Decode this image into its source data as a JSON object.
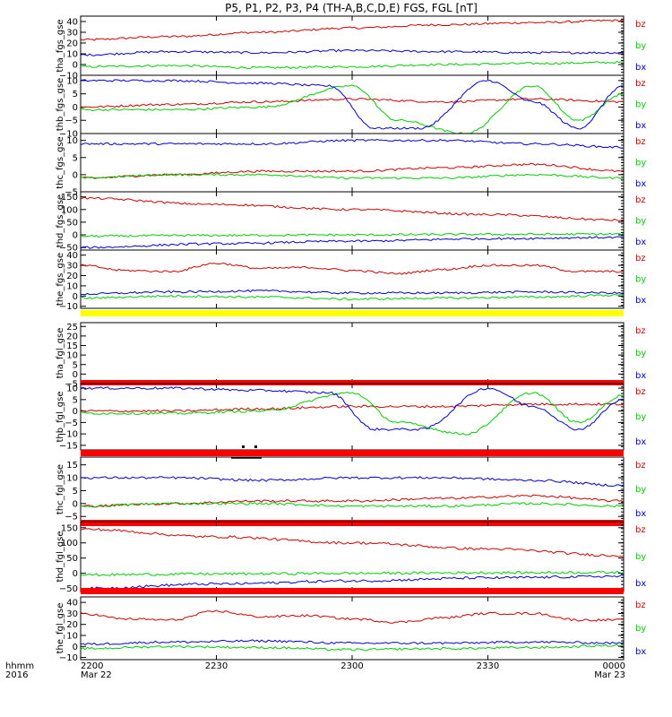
{
  "chart_data": {
    "type": "line",
    "title": "P5, P1, P2, P3, P4 (TH-A,B,C,D,E) FGS, FGL [nT]",
    "x_axis": {
      "row1_label": "hhmm",
      "row2_label": "2016",
      "ticks": [
        {
          "hhmm": "2200",
          "date": "Mar 22",
          "minutes": 0
        },
        {
          "hhmm": "2230",
          "date": "",
          "minutes": 30
        },
        {
          "hhmm": "2300",
          "date": "",
          "minutes": 60
        },
        {
          "hhmm": "2330",
          "date": "",
          "minutes": 90
        },
        {
          "hhmm": "0000",
          "date": "Mar 23",
          "minutes": 120
        }
      ],
      "range_minutes": [
        0,
        120
      ]
    },
    "colors": {
      "bz": "#cc0000",
      "by": "#00cc00",
      "bx": "#0000cc",
      "bar_yellow": "#ffff00",
      "bar_red": "#ff0000"
    },
    "legend": [
      "bz",
      "by",
      "bx"
    ],
    "panels": [
      {
        "label": "tha_fgs_gse",
        "ylim": [
          -10,
          45
        ],
        "ticks": [
          -10,
          0,
          10,
          20,
          30,
          40
        ],
        "tick_labels": [
          "−10",
          "0",
          "10",
          "20",
          "30",
          "40"
        ],
        "bar": null,
        "series": [
          {
            "name": "bz",
            "x": [
              0,
              20,
              40,
              60,
              80,
              100,
              120
            ],
            "y": [
              23,
              26,
              30,
              34,
              37,
              39,
              41
            ]
          },
          {
            "name": "by",
            "x": [
              0,
              20,
              40,
              60,
              80,
              100,
              120
            ],
            "y": [
              -2,
              -1,
              -3,
              -2,
              0,
              1,
              2
            ]
          },
          {
            "name": "bx",
            "x": [
              0,
              20,
              40,
              60,
              80,
              100,
              120
            ],
            "y": [
              9,
              12,
              11,
              13,
              12,
              11,
              11
            ]
          }
        ]
      },
      {
        "label": "thb_fgs_gse",
        "ylim": [
          -10,
          12
        ],
        "ticks": [
          -10,
          -5,
          0,
          5,
          10
        ],
        "tick_labels": [
          "−10",
          "−5",
          "0",
          "5",
          "10"
        ],
        "bar": null,
        "series": [
          {
            "name": "bz",
            "x": [
              0,
              20,
              40,
              60,
              80,
              100,
              120
            ],
            "y": [
              0,
              1,
              2,
              3,
              2,
              3,
              2
            ]
          },
          {
            "name": "by",
            "x": [
              0,
              20,
              40,
              60,
              70,
              85,
              100,
              110,
              120
            ],
            "y": [
              -1,
              -1,
              0,
              8,
              -5,
              -10,
              8,
              -5,
              5
            ]
          },
          {
            "name": "bx",
            "x": [
              0,
              20,
              40,
              55,
              65,
              75,
              90,
              100,
              110,
              120
            ],
            "y": [
              10,
              10,
              9,
              8,
              -8,
              -8,
              10,
              2,
              -8,
              8
            ]
          }
        ]
      },
      {
        "label": "thc_fgs_gse",
        "ylim": [
          -5,
          12
        ],
        "ticks": [
          -5,
          0,
          5,
          10
        ],
        "tick_labels": [
          "−5",
          "0",
          "5",
          "10"
        ],
        "bar": null,
        "series": [
          {
            "name": "bz",
            "x": [
              0,
              20,
              40,
              60,
              80,
              100,
              120
            ],
            "y": [
              -1,
              0,
              1,
              1,
              2,
              3,
              1
            ]
          },
          {
            "name": "by",
            "x": [
              0,
              20,
              40,
              60,
              80,
              100,
              120
            ],
            "y": [
              -1,
              0,
              0,
              -1,
              -1,
              0,
              -1
            ]
          },
          {
            "name": "bx",
            "x": [
              0,
              20,
              40,
              60,
              80,
              100,
              120
            ],
            "y": [
              9,
              9,
              9,
              10,
              10,
              9,
              8
            ]
          }
        ]
      },
      {
        "label": "thd_fgs_gse",
        "ylim": [
          -60,
          170
        ],
        "ticks": [
          -50,
          0,
          50,
          100,
          150
        ],
        "tick_labels": [
          "−50",
          "0",
          "50",
          "100",
          "150"
        ],
        "bar": null,
        "series": [
          {
            "name": "bz",
            "x": [
              0,
              30,
              60,
              90,
              120
            ],
            "y": [
              145,
              120,
              100,
              80,
              58
            ]
          },
          {
            "name": "by",
            "x": [
              0,
              30,
              60,
              90,
              120
            ],
            "y": [
              -5,
              -2,
              0,
              2,
              3
            ]
          },
          {
            "name": "bx",
            "x": [
              0,
              30,
              60,
              90,
              120
            ],
            "y": [
              -50,
              -35,
              -25,
              -15,
              -10
            ]
          }
        ]
      },
      {
        "label": "the_fgs_gse",
        "ylim": [
          -12,
          45
        ],
        "ticks": [
          -10,
          0,
          10,
          20,
          30,
          40
        ],
        "tick_labels": [
          "−10",
          "0",
          "10",
          "20",
          "30",
          "40"
        ],
        "bar": "yellow",
        "series": [
          {
            "name": "bz",
            "x": [
              0,
              10,
              20,
              30,
              40,
              50,
              60,
              70,
              80,
              90,
              100,
              110,
              120
            ],
            "y": [
              30,
              25,
              24,
              32,
              27,
              28,
              25,
              22,
              26,
              30,
              30,
              24,
              24
            ]
          },
          {
            "name": "by",
            "x": [
              0,
              20,
              40,
              60,
              80,
              100,
              120
            ],
            "y": [
              -2,
              0,
              -1,
              -3,
              -2,
              -1,
              1
            ]
          },
          {
            "name": "bx",
            "x": [
              0,
              20,
              40,
              60,
              80,
              100,
              120
            ],
            "y": [
              2,
              4,
              5,
              3,
              3,
              4,
              3
            ]
          }
        ]
      },
      {
        "label": "tha_fgl_gse",
        "ylim": [
          -5,
          27
        ],
        "ticks": [
          -5,
          0,
          5,
          10,
          15,
          20,
          25
        ],
        "tick_labels": [
          "−5",
          "0",
          "5",
          "10",
          "15",
          "20",
          "25"
        ],
        "bar": "red",
        "series": []
      },
      {
        "label": "thb_fgl_gse",
        "ylim": [
          -17,
          12
        ],
        "ticks": [
          -15,
          -10,
          -5,
          0,
          5,
          10
        ],
        "tick_labels": [
          "−15",
          "−10",
          "−5",
          "0",
          "5",
          "10"
        ],
        "bar": "red",
        "series": [
          {
            "name": "bz",
            "x": [
              0,
              20,
              40,
              60,
              80,
              100,
              120
            ],
            "y": [
              0,
              0,
              1,
              2,
              2,
              3,
              3
            ]
          },
          {
            "name": "by",
            "x": [
              0,
              20,
              40,
              60,
              70,
              85,
              100,
              110,
              120
            ],
            "y": [
              -1,
              -1,
              0,
              8,
              -5,
              -10,
              8,
              -5,
              7
            ]
          },
          {
            "name": "bx",
            "x": [
              0,
              20,
              40,
              55,
              65,
              75,
              90,
              100,
              110,
              120
            ],
            "y": [
              10,
              10,
              9,
              8,
              -8,
              -8,
              10,
              2,
              -8,
              5
            ]
          }
        ]
      },
      {
        "label": "thc_fgl_gse",
        "ylim": [
          -7,
          18
        ],
        "ticks": [
          -5,
          0,
          5,
          10,
          15
        ],
        "tick_labels": [
          "−5",
          "0",
          "5",
          "10",
          "15"
        ],
        "bar": "red",
        "series": [
          {
            "name": "bz",
            "x": [
              0,
              20,
              40,
              60,
              80,
              100,
              120
            ],
            "y": [
              -1,
              0,
              1,
              1,
              2,
              3,
              1
            ]
          },
          {
            "name": "by",
            "x": [
              0,
              20,
              40,
              60,
              80,
              100,
              120
            ],
            "y": [
              -1,
              0,
              0,
              -1,
              -1,
              0,
              -1
            ]
          },
          {
            "name": "bx",
            "x": [
              0,
              20,
              40,
              60,
              80,
              100,
              120
            ],
            "y": [
              10,
              10,
              9,
              10,
              10,
              9,
              7
            ]
          }
        ]
      },
      {
        "label": "thd_fgl_gse",
        "ylim": [
          -60,
          170
        ],
        "ticks": [
          -50,
          0,
          50,
          100,
          150
        ],
        "tick_labels": [
          "−50",
          "0",
          "50",
          "100",
          "150"
        ],
        "bar": "red",
        "series": [
          {
            "name": "bz",
            "x": [
              0,
              30,
              60,
              90,
              120
            ],
            "y": [
              145,
              120,
              100,
              80,
              58
            ]
          },
          {
            "name": "by",
            "x": [
              0,
              30,
              60,
              90,
              120
            ],
            "y": [
              -5,
              -2,
              0,
              2,
              3
            ]
          },
          {
            "name": "bx",
            "x": [
              0,
              30,
              60,
              90,
              120
            ],
            "y": [
              -50,
              -35,
              -25,
              -15,
              -10
            ]
          }
        ]
      },
      {
        "label": "the_fgl_gse",
        "ylim": [
          -12,
          45
        ],
        "ticks": [
          -10,
          0,
          10,
          20,
          30,
          40
        ],
        "tick_labels": [
          "−10",
          "0",
          "10",
          "20",
          "30",
          "40"
        ],
        "bar": "red",
        "series": [
          {
            "name": "bz",
            "x": [
              0,
              10,
              20,
              30,
              40,
              50,
              60,
              70,
              80,
              90,
              100,
              110,
              120
            ],
            "y": [
              30,
              25,
              24,
              32,
              27,
              28,
              25,
              22,
              26,
              30,
              30,
              24,
              24
            ]
          },
          {
            "name": "by",
            "x": [
              0,
              20,
              40,
              60,
              80,
              100,
              120
            ],
            "y": [
              -2,
              0,
              -1,
              -3,
              -2,
              -1,
              1
            ]
          },
          {
            "name": "bx",
            "x": [
              0,
              20,
              40,
              60,
              80,
              100,
              120
            ],
            "y": [
              2,
              4,
              5,
              3,
              3,
              4,
              3
            ]
          }
        ]
      }
    ]
  }
}
